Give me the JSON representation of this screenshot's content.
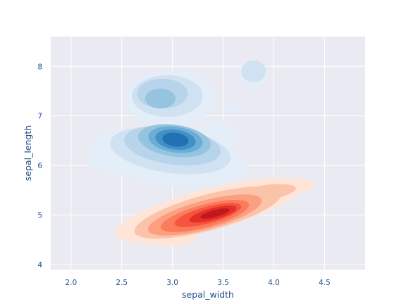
{
  "chart_data": {
    "type": "kde-contour",
    "title": "",
    "xlabel": "sepal_width",
    "ylabel": "sepal_length",
    "xlim": [
      1.8,
      4.9
    ],
    "ylim": [
      3.9,
      8.6
    ],
    "x_ticks": [
      2.0,
      2.5,
      3.0,
      3.5,
      4.0,
      4.5
    ],
    "x_tick_labels": [
      "2.0",
      "2.5",
      "3.0",
      "3.5",
      "4.0",
      "4.5"
    ],
    "y_ticks": [
      4,
      5,
      6,
      7,
      8
    ],
    "y_tick_labels": [
      "4",
      "5",
      "6",
      "7",
      "8"
    ],
    "grid": true,
    "background_color": "#eaeaf2",
    "grid_color": "#ffffff",
    "label_color": "#1f4e8c",
    "series": [
      {
        "colormap": "Blues",
        "levels": [
          {
            "color": "#e3eef8",
            "blobs": [
              {
                "cx": 2.95,
                "cy": 6.15,
                "rx": 0.78,
                "ry": 0.55,
                "rot": 8
              },
              {
                "cx": 2.98,
                "cy": 7.35,
                "rx": 0.45,
                "ry": 0.55,
                "rot": 0
              },
              {
                "cx": 2.42,
                "cy": 6.05,
                "rx": 0.25,
                "ry": 0.18,
                "rot": 0
              },
              {
                "cx": 3.45,
                "cy": 6.6,
                "rx": 0.2,
                "ry": 0.3,
                "rot": 0
              },
              {
                "cx": 3.8,
                "cy": 7.85,
                "rx": 0.14,
                "ry": 0.28,
                "rot": 0
              },
              {
                "cx": 3.6,
                "cy": 7.15,
                "rx": 0.1,
                "ry": 0.1,
                "rot": 0
              }
            ]
          },
          {
            "color": "#d0e1f2",
            "blobs": [
              {
                "cx": 2.98,
                "cy": 6.3,
                "rx": 0.6,
                "ry": 0.45,
                "rot": 8
              },
              {
                "cx": 2.95,
                "cy": 7.4,
                "rx": 0.35,
                "ry": 0.42,
                "rot": 0
              },
              {
                "cx": 3.8,
                "cy": 7.9,
                "rx": 0.12,
                "ry": 0.22,
                "rot": 0
              }
            ]
          },
          {
            "color": "#b7d4ea",
            "blobs": [
              {
                "cx": 3.0,
                "cy": 6.4,
                "rx": 0.48,
                "ry": 0.38,
                "rot": 8
              },
              {
                "cx": 2.9,
                "cy": 7.45,
                "rx": 0.25,
                "ry": 0.3,
                "rot": 0
              }
            ]
          },
          {
            "color": "#94c4df",
            "blobs": [
              {
                "cx": 3.02,
                "cy": 6.5,
                "rx": 0.36,
                "ry": 0.32,
                "rot": 8
              },
              {
                "cx": 2.88,
                "cy": 7.35,
                "rx": 0.15,
                "ry": 0.2,
                "rot": 0
              }
            ]
          },
          {
            "color": "#6aaed6",
            "blobs": [
              {
                "cx": 3.03,
                "cy": 6.52,
                "rx": 0.27,
                "ry": 0.26,
                "rot": 8
              }
            ]
          },
          {
            "color": "#4191c6",
            "blobs": [
              {
                "cx": 3.03,
                "cy": 6.52,
                "rx": 0.2,
                "ry": 0.2,
                "rot": 8
              }
            ]
          },
          {
            "color": "#2171b5",
            "blobs": [
              {
                "cx": 3.03,
                "cy": 6.52,
                "rx": 0.13,
                "ry": 0.14,
                "rot": 8
              }
            ]
          }
        ]
      },
      {
        "colormap": "Reds",
        "levels": [
          {
            "color": "#fee5d8",
            "blobs": [
              {
                "cx": 3.35,
                "cy": 5.1,
                "rx": 0.95,
                "ry": 0.42,
                "rot": -15
              },
              {
                "cx": 3.95,
                "cy": 5.5,
                "rx": 0.45,
                "ry": 0.2,
                "rot": -8
              },
              {
                "cx": 2.95,
                "cy": 4.55,
                "rx": 0.3,
                "ry": 0.18,
                "rot": 0
              }
            ]
          },
          {
            "color": "#fcc3ab",
            "blobs": [
              {
                "cx": 3.35,
                "cy": 5.05,
                "rx": 0.75,
                "ry": 0.36,
                "rot": -15
              },
              {
                "cx": 3.9,
                "cy": 5.45,
                "rx": 0.32,
                "ry": 0.15,
                "rot": -8
              }
            ]
          },
          {
            "color": "#fc9f81",
            "blobs": [
              {
                "cx": 3.32,
                "cy": 5.0,
                "rx": 0.58,
                "ry": 0.29,
                "rot": -15
              }
            ]
          },
          {
            "color": "#fb7c5c",
            "blobs": [
              {
                "cx": 3.32,
                "cy": 4.98,
                "rx": 0.45,
                "ry": 0.23,
                "rot": -15
              }
            ]
          },
          {
            "color": "#f5553c",
            "blobs": [
              {
                "cx": 3.35,
                "cy": 5.0,
                "rx": 0.34,
                "ry": 0.17,
                "rot": -15
              }
            ]
          },
          {
            "color": "#e32f27",
            "blobs": [
              {
                "cx": 3.4,
                "cy": 5.02,
                "rx": 0.24,
                "ry": 0.12,
                "rot": -15
              }
            ]
          },
          {
            "color": "#c2181c",
            "blobs": [
              {
                "cx": 3.42,
                "cy": 5.03,
                "rx": 0.15,
                "ry": 0.07,
                "rot": -15
              }
            ]
          }
        ]
      }
    ]
  }
}
